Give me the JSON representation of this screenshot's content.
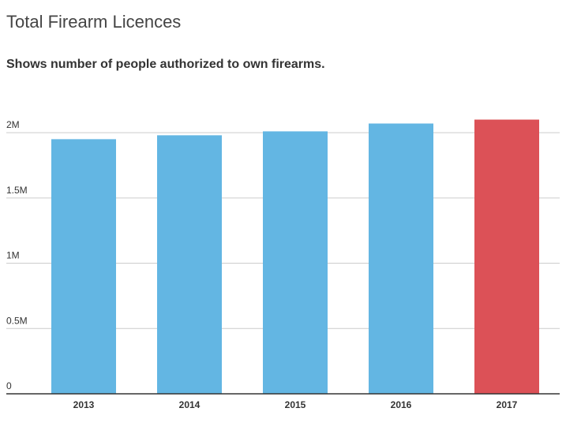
{
  "chart_data": {
    "type": "bar",
    "title": "Total Firearm Licences",
    "subtitle": "Shows number of people authorized to own firearms.",
    "categories": [
      "2013",
      "2014",
      "2015",
      "2016",
      "2017"
    ],
    "values": [
      1950000,
      1980000,
      2010000,
      2070000,
      2100000
    ],
    "colors": [
      "#63b6e3",
      "#63b6e3",
      "#63b6e3",
      "#63b6e3",
      "#dc5157"
    ],
    "ylim": [
      0,
      2200000
    ],
    "yticks": [
      0,
      {
        "value": 500000,
        "label": "0.5M"
      },
      {
        "value": 1000000,
        "label": "1M"
      },
      {
        "value": 1500000,
        "label": "1.5M"
      },
      {
        "value": 2000000,
        "label": "2M"
      }
    ],
    "grid": true
  }
}
